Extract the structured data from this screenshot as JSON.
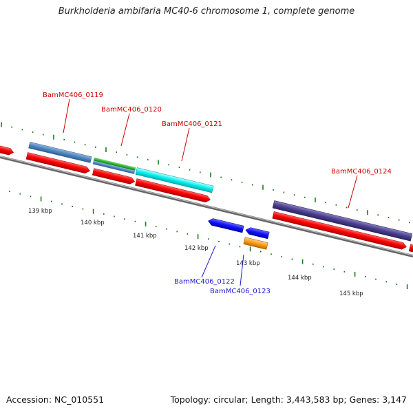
{
  "title": "Burkholderia ambifaria MC40-6 chromosome 1, complete genome",
  "footer": {
    "accession": "Accession: NC_010551",
    "summary": "Topology: circular; Length: 3,443,583 bp; Genes: 3,147"
  },
  "colors": {
    "cds_red": "#ff0000",
    "label_red": "#cc0000",
    "label_blue": "#1a1acc",
    "backbone": "#888888",
    "tick_green": "#1f7a1f"
  },
  "kbp_labels": [
    "139 kbp",
    "140 kbp",
    "141 kbp",
    "142 kbp",
    "143 kbp",
    "144 kbp",
    "145 kbp"
  ],
  "gene_labels": [
    {
      "text": "BamMC406_0119",
      "color": "red"
    },
    {
      "text": "BamMC406_0120",
      "color": "red"
    },
    {
      "text": "BamMC406_0121",
      "color": "red"
    },
    {
      "text": "BamMC406_0124",
      "color": "red"
    },
    {
      "text": "BamMC406_0122",
      "color": "blue"
    },
    {
      "text": "BamMC406_0123",
      "color": "blue"
    }
  ]
}
